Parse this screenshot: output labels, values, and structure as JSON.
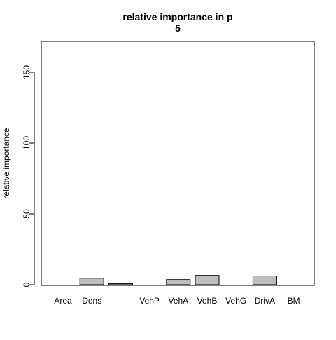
{
  "chart_data": {
    "type": "bar",
    "title_line1": "relative importance in p",
    "title_line2": "5",
    "xlabel": "",
    "ylabel": "relative importance",
    "categories": [
      "Area",
      "Dens",
      "",
      "VehP",
      "VehA",
      "VehB",
      "VehG",
      "DrivA",
      "BM"
    ],
    "values": [
      0,
      4.6,
      0.8,
      0,
      3.6,
      6.6,
      0,
      6.2,
      0
    ],
    "ylim": [
      0,
      172
    ],
    "yticks": [
      0,
      50,
      100,
      150
    ],
    "grid": false,
    "legend": "none",
    "bar_fill": "#bebebe",
    "bar_stroke": "#000000"
  }
}
